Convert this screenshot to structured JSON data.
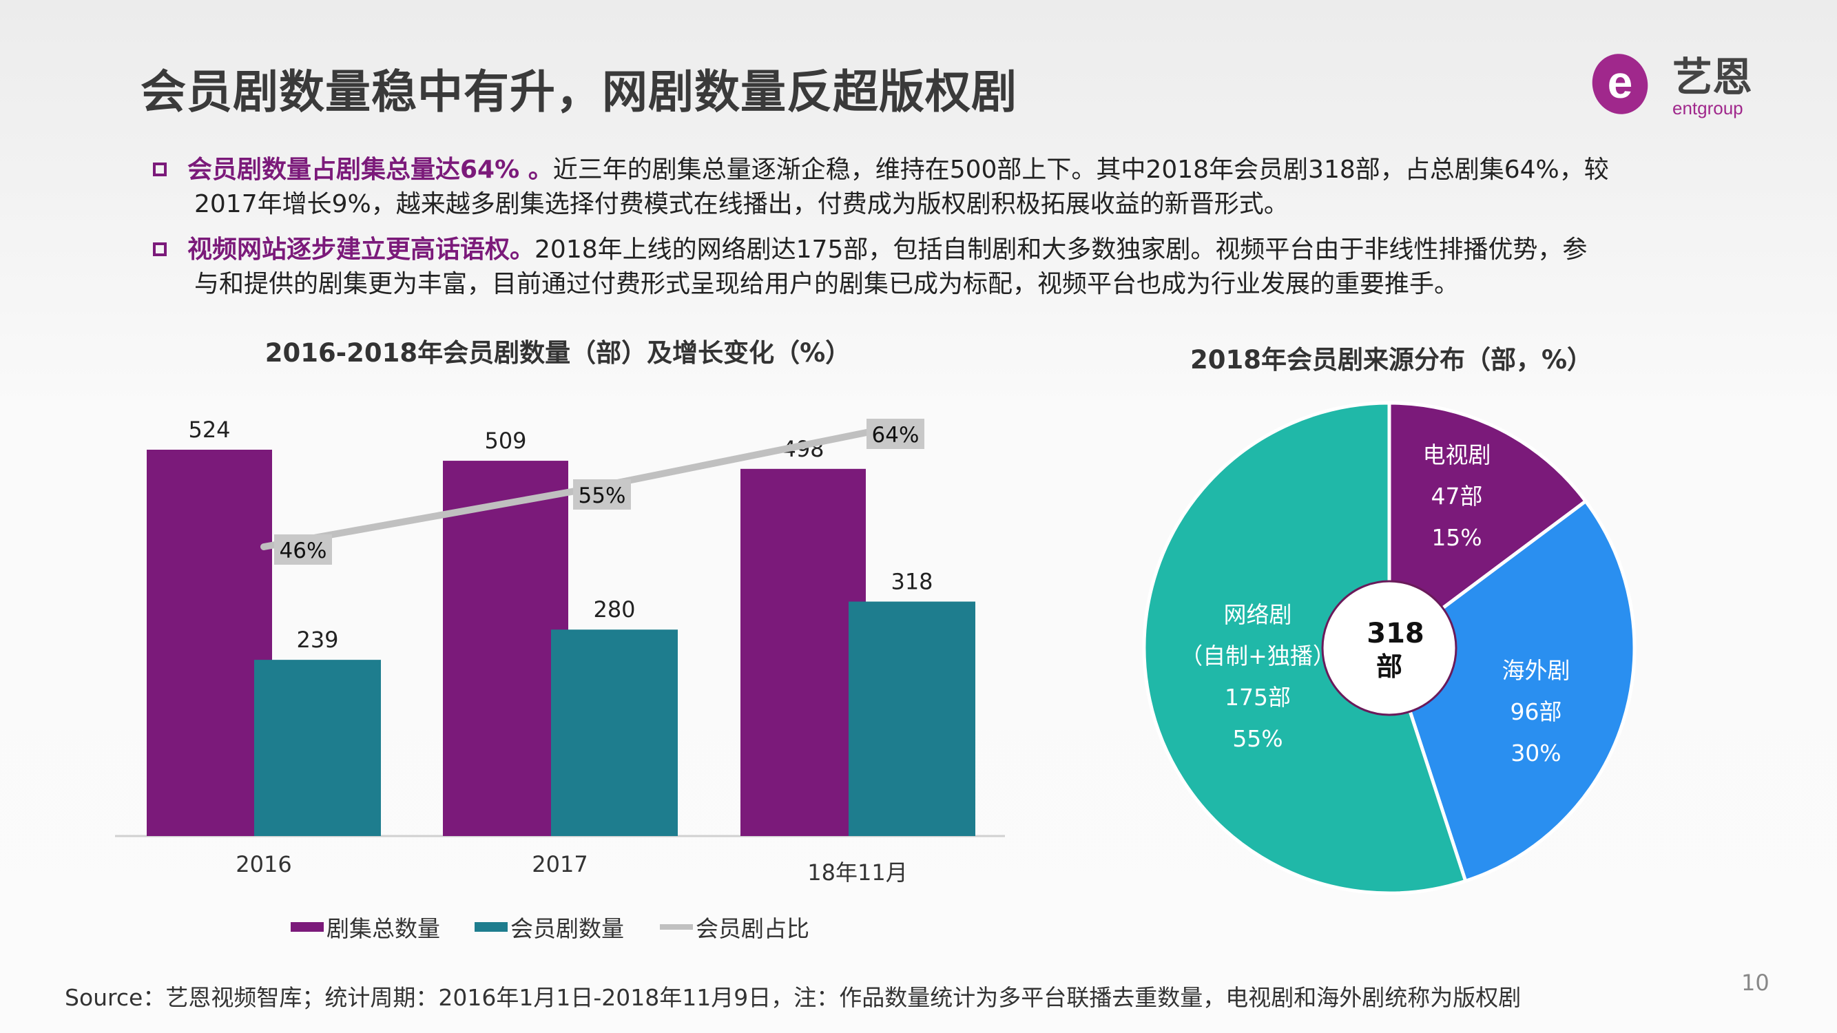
{
  "title": "会员剧数量稳中有升，网剧数量反超版权剧",
  "logo": {
    "cn": "艺恩",
    "en": "entgroup",
    "color": "#a0288c"
  },
  "bullets": [
    {
      "highlight": "会员剧数量占剧集总量达64% 。",
      "line1": "近三年的剧集总量逐渐企稳，维持在500部上下。其中2018年会员剧318部，占总剧集64%，较",
      "line2": "2017年增长9%，越来越多剧集选择付费模式在线播出，付费成为版权剧积极拓展收益的新晋形式。"
    },
    {
      "highlight": "视频网站逐步建立更高话语权。",
      "line1": "2018年上线的网络剧达175部，包括自制剧和大多数独家剧。视频平台由于非线性排播优势，参",
      "line2": "与和提供的剧集更为丰富，目前通过付费形式呈现给用户的剧集已成为标配，视频平台也成为行业发展的重要推手。"
    }
  ],
  "chart_data": [
    {
      "type": "bar",
      "title": "2016-2018年会员剧数量（部）及增长变化（%）",
      "categories": [
        "2016",
        "2017",
        "18年11月"
      ],
      "series": [
        {
          "name": "剧集总数量",
          "values": [
            524,
            509,
            498
          ],
          "color": "#7b1a7a",
          "labels": [
            "524",
            "509",
            "498"
          ]
        },
        {
          "name": "会员剧数量",
          "values": [
            239,
            280,
            318
          ],
          "color": "#1e7d8e",
          "labels": [
            "239",
            "280",
            "318"
          ]
        },
        {
          "name": "会员剧占比",
          "type": "line",
          "values": [
            46,
            55,
            64
          ],
          "color": "#c0c0c0",
          "labels": [
            "46%",
            "55%",
            "64%"
          ]
        }
      ],
      "legend_position": "bottom"
    },
    {
      "type": "pie",
      "title": "2018年会员剧来源分布（部，%）",
      "center_label": [
        "318",
        "部"
      ],
      "slices": [
        {
          "name": "电视剧",
          "count_label": "47部",
          "pct_label": "15%",
          "value": 47,
          "color": "#7b1a7a"
        },
        {
          "name": "海外剧",
          "count_label": "96部",
          "pct_label": "30%",
          "value": 96,
          "color": "#2a8ff0"
        },
        {
          "name": "网络剧",
          "sub": "（自制+独播）",
          "count_label": "175部",
          "pct_label": "55%",
          "value": 175,
          "color": "#20b8a8"
        }
      ]
    }
  ],
  "source": "Source：艺恩视频智库；统计周期：2016年1月1日-2018年11月9日，注：作品数量统计为多平台联播去重数量，电视剧和海外剧统称为版权剧",
  "page_number": "10"
}
